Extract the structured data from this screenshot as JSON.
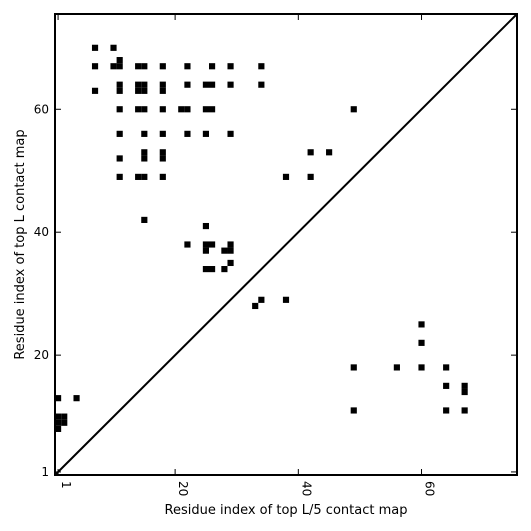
{
  "chart_data": {
    "type": "scatter",
    "marker": "square",
    "color": "#000000",
    "xlabel": "Residue index of top L/5 contact map",
    "ylabel": "Residue index of top L contact map",
    "xlim": [
      0.5,
      75.5
    ],
    "ylim": [
      0.5,
      75.5
    ],
    "xticks": [
      1,
      20,
      40,
      60
    ],
    "yticks": [
      1,
      20,
      40,
      60
    ],
    "x_tick_labels": [
      "1",
      "20",
      "40",
      "60"
    ],
    "y_tick_labels": [
      "1",
      "20",
      "40",
      "60"
    ],
    "x_tick_rotation": -90,
    "diagonal_line": true,
    "points_top_L": [
      [
        7,
        70
      ],
      [
        10,
        70
      ],
      [
        7,
        67
      ],
      [
        10,
        67
      ],
      [
        11,
        68
      ],
      [
        11,
        67
      ],
      [
        14,
        67
      ],
      [
        15,
        67
      ],
      [
        18,
        67
      ],
      [
        22,
        67
      ],
      [
        26,
        67
      ],
      [
        29,
        67
      ],
      [
        34,
        67
      ],
      [
        7,
        63
      ],
      [
        11,
        64
      ],
      [
        11,
        63
      ],
      [
        14,
        64
      ],
      [
        15,
        64
      ],
      [
        14,
        63
      ],
      [
        15,
        63
      ],
      [
        18,
        64
      ],
      [
        18,
        63
      ],
      [
        22,
        64
      ],
      [
        25,
        64
      ],
      [
        26,
        64
      ],
      [
        29,
        64
      ],
      [
        34,
        64
      ],
      [
        11,
        60
      ],
      [
        14,
        60
      ],
      [
        15,
        60
      ],
      [
        18,
        60
      ],
      [
        21,
        60
      ],
      [
        22,
        60
      ],
      [
        25,
        60
      ],
      [
        26,
        60
      ],
      [
        49,
        60
      ],
      [
        11,
        56
      ],
      [
        15,
        56
      ],
      [
        18,
        56
      ],
      [
        22,
        56
      ],
      [
        25,
        56
      ],
      [
        29,
        56
      ],
      [
        11,
        52
      ],
      [
        15,
        53
      ],
      [
        15,
        52
      ],
      [
        18,
        53
      ],
      [
        18,
        52
      ],
      [
        42,
        53
      ],
      [
        45,
        53
      ],
      [
        11,
        49
      ],
      [
        14,
        49
      ],
      [
        15,
        49
      ],
      [
        18,
        49
      ],
      [
        38,
        49
      ],
      [
        42,
        49
      ],
      [
        15,
        42
      ],
      [
        25,
        41
      ],
      [
        22,
        38
      ],
      [
        25,
        38
      ],
      [
        26,
        38
      ],
      [
        29,
        38
      ],
      [
        25,
        37
      ],
      [
        28,
        37
      ],
      [
        29,
        37
      ],
      [
        29,
        35
      ],
      [
        25,
        34
      ],
      [
        26,
        34
      ],
      [
        28,
        34
      ],
      [
        34,
        29
      ],
      [
        38,
        29
      ],
      [
        33,
        28
      ]
    ],
    "points_top_L5": [
      [
        60,
        25
      ],
      [
        60,
        22
      ],
      [
        49,
        18
      ],
      [
        56,
        18
      ],
      [
        60,
        18
      ],
      [
        64,
        18
      ],
      [
        64,
        15
      ],
      [
        67,
        15
      ],
      [
        67,
        14
      ],
      [
        1,
        13
      ],
      [
        4,
        13
      ],
      [
        49,
        11
      ],
      [
        64,
        11
      ],
      [
        67,
        11
      ],
      [
        1,
        10
      ],
      [
        2,
        10
      ],
      [
        1,
        9
      ],
      [
        2,
        9
      ],
      [
        1,
        8
      ]
    ]
  }
}
